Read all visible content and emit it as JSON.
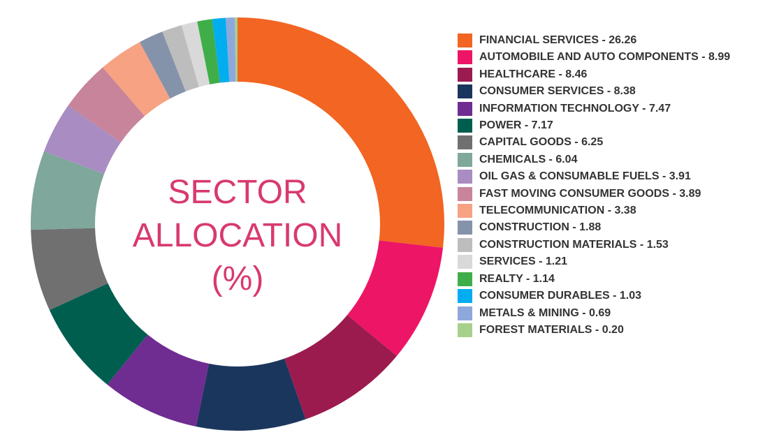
{
  "chart_data": {
    "type": "donut",
    "title": "SECTOR ALLOCATION (%)",
    "categories": [
      "FINANCIAL SERVICES - 26.26",
      "AUTOMOBILE AND AUTO COMPONENTS - 8.99",
      "HEALTHCARE - 8.46",
      "CONSUMER SERVICES - 8.38",
      "INFORMATION TECHNOLOGY - 7.47",
      "POWER - 7.17",
      "CAPITAL GOODS - 6.25",
      "CHEMICALS - 6.04",
      "OIL GAS & CONSUMABLE FUELS - 3.91",
      "FAST MOVING CONSUMER GOODS - 3.89",
      "TELECOMMUNICATION - 3.38",
      "CONSTRUCTION - 1.88",
      "CONSTRUCTION MATERIALS - 1.53",
      "SERVICES - 1.21",
      "REALTY - 1.14",
      "CONSUMER DURABLES - 1.03",
      "METALS & MINING - 0.69",
      "FOREST MATERIALS - 0.20"
    ],
    "values": [
      26.26,
      8.99,
      8.46,
      8.38,
      7.47,
      7.17,
      6.25,
      6.04,
      3.91,
      3.89,
      3.38,
      1.88,
      1.53,
      1.21,
      1.14,
      1.03,
      0.69,
      0.2
    ],
    "colors": [
      "#f26522",
      "#ed1566",
      "#9b1b4f",
      "#1b365d",
      "#6f2c91",
      "#005e4f",
      "#707070",
      "#7fa79b",
      "#a98cc2",
      "#c7849a",
      "#f6a283",
      "#8593aa",
      "#bdbdbd",
      "#d9d9d9",
      "#3fae49",
      "#00aeef",
      "#8fa8dc",
      "#a8d08d"
    ]
  }
}
